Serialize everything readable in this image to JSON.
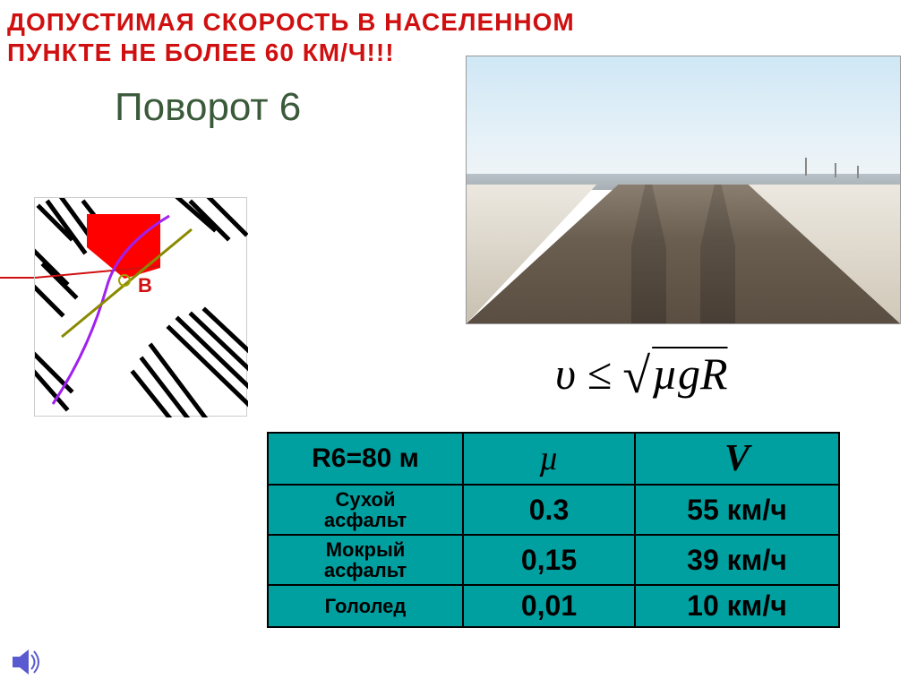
{
  "warning_text_line1": "ДОПУСТИМАЯ СКОРОСТЬ В НАСЕЛЕННОМ",
  "warning_text_line2": "ПУНКТЕ НЕ БОЛЕЕ 60 КМ/Ч!!!",
  "warning_color": "#d01010",
  "title": "Поворот 6",
  "title_color": "#3a5a3a",
  "formula": {
    "lhs": "υ",
    "op": "≤",
    "radicand": "µgR"
  },
  "table": {
    "bg_color": "#00a0a0",
    "border_color": "#000000",
    "header": {
      "radius_label": "R6=80 м",
      "mu_symbol": "µ",
      "v_symbol": "V"
    },
    "rows": [
      {
        "surface": "Сухой асфальт",
        "mu": "0.3",
        "v": "55 км/ч"
      },
      {
        "surface": "Мокрый асфальт",
        "mu": "0,15",
        "v": "39 км/ч"
      },
      {
        "surface": "Гололед",
        "mu": "0,01",
        "v": "10 км/ч"
      }
    ]
  },
  "photo": {
    "sky_color_top": "#cfe7f5",
    "sky_color_bottom": "#f0f4f6",
    "snow_color": "#ece8e0",
    "road_color": "#6a5e50"
  },
  "map": {
    "highlight_color": "#ff0000",
    "route_color": "#a020f0"
  }
}
